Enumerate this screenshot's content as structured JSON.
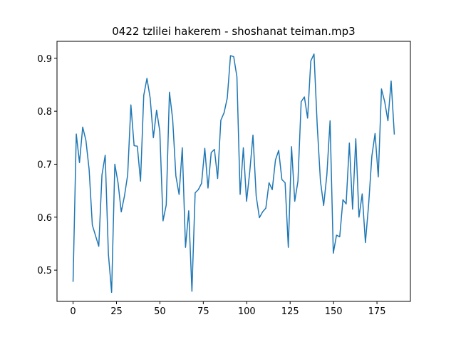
{
  "chart_data": {
    "type": "line",
    "title": "0422 tzlilei hakerem - shoshanat teiman.mp3",
    "x": [
      0,
      1.85,
      3.7,
      5.55,
      7.4,
      9.25,
      11.1,
      12.95,
      14.8,
      16.65,
      18.5,
      20.35,
      22.2,
      24.05,
      25.9,
      27.75,
      29.6,
      31.45,
      33.3,
      35.15,
      37,
      38.85,
      40.7,
      42.55,
      44.4,
      46.25,
      48.1,
      49.95,
      51.8,
      53.65,
      55.5,
      57.35,
      59.2,
      61.05,
      62.9,
      64.75,
      66.6,
      68.45,
      70.3,
      72.15,
      74,
      75.85,
      77.7,
      79.55,
      81.4,
      83.25,
      85.1,
      86.95,
      88.8,
      90.65,
      92.5,
      94.35,
      96.2,
      98.05,
      99.9,
      101.75,
      103.6,
      105.45,
      107.3,
      109.15,
      111,
      112.85,
      114.7,
      116.55,
      118.4,
      120.25,
      122.1,
      123.95,
      125.8,
      127.65,
      129.5,
      131.35,
      133.2,
      135.05,
      136.9,
      138.75,
      140.6,
      142.45,
      144.3,
      146.15,
      148,
      149.85,
      151.7,
      153.55,
      155.4,
      157.25,
      159.1,
      160.95,
      162.8,
      164.65,
      166.5,
      168.35,
      170.2,
      172.05,
      173.9,
      175.75,
      177.6,
      179.45,
      181.3,
      183.15,
      185
    ],
    "series": [
      {
        "color": "#1f77b4",
        "values": [
          0.478,
          0.757,
          0.703,
          0.77,
          0.745,
          0.69,
          0.585,
          0.565,
          0.545,
          0.68,
          0.717,
          0.53,
          0.458,
          0.7,
          0.665,
          0.61,
          0.64,
          0.68,
          0.812,
          0.735,
          0.734,
          0.668,
          0.83,
          0.862,
          0.825,
          0.75,
          0.802,
          0.762,
          0.593,
          0.623,
          0.836,
          0.785,
          0.678,
          0.643,
          0.731,
          0.543,
          0.612,
          0.46,
          0.646,
          0.652,
          0.664,
          0.73,
          0.655,
          0.722,
          0.728,
          0.673,
          0.783,
          0.797,
          0.825,
          0.905,
          0.903,
          0.865,
          0.643,
          0.731,
          0.63,
          0.686,
          0.755,
          0.64,
          0.599,
          0.61,
          0.617,
          0.665,
          0.652,
          0.708,
          0.726,
          0.671,
          0.665,
          0.543,
          0.733,
          0.63,
          0.668,
          0.818,
          0.827,
          0.787,
          0.895,
          0.908,
          0.773,
          0.668,
          0.622,
          0.68,
          0.782,
          0.532,
          0.566,
          0.563,
          0.633,
          0.625,
          0.74,
          0.615,
          0.748,
          0.6,
          0.644,
          0.552,
          0.624,
          0.715,
          0.758,
          0.676,
          0.842,
          0.818,
          0.782,
          0.857,
          0.756
        ]
      }
    ],
    "xlim": [
      -9.25,
      194.25
    ],
    "xticks": [
      0,
      25,
      50,
      75,
      100,
      125,
      150,
      175
    ],
    "ylim": [
      0.441,
      0.932
    ],
    "yticks": [
      0.5,
      0.6,
      0.7,
      0.8,
      0.9
    ]
  }
}
